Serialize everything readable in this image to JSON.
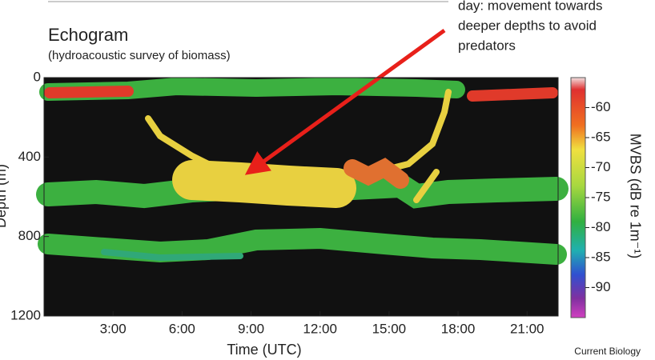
{
  "chart_data": {
    "type": "heatmap",
    "title": "Echogram",
    "subtitle": "(hydroacoustic survey of biomass)",
    "annotation": [
      "day: movement towards",
      "deeper depths to avoid",
      "predators"
    ],
    "xlabel": "Time (UTC)",
    "ylabel": "Depth (m)",
    "xlim": [
      0,
      22.35
    ],
    "xticks": [
      {
        "value": 3,
        "label": "3:00"
      },
      {
        "value": 6,
        "label": "6:00"
      },
      {
        "value": 9,
        "label": "9:00"
      },
      {
        "value": 12,
        "label": "12:00"
      },
      {
        "value": 15,
        "label": "15:00"
      },
      {
        "value": 18,
        "label": "18:00"
      },
      {
        "value": 21,
        "label": "21:00"
      }
    ],
    "ylim": [
      1200,
      0
    ],
    "yticks": [
      0,
      400,
      800,
      1200
    ],
    "colorbar_label": "MVBS (dB re 1m⁻¹)",
    "clim": [
      -95,
      -55
    ],
    "cticks": [
      -60,
      -65,
      -70,
      -75,
      -80,
      -85,
      -90
    ],
    "source": "Current Biology"
  }
}
